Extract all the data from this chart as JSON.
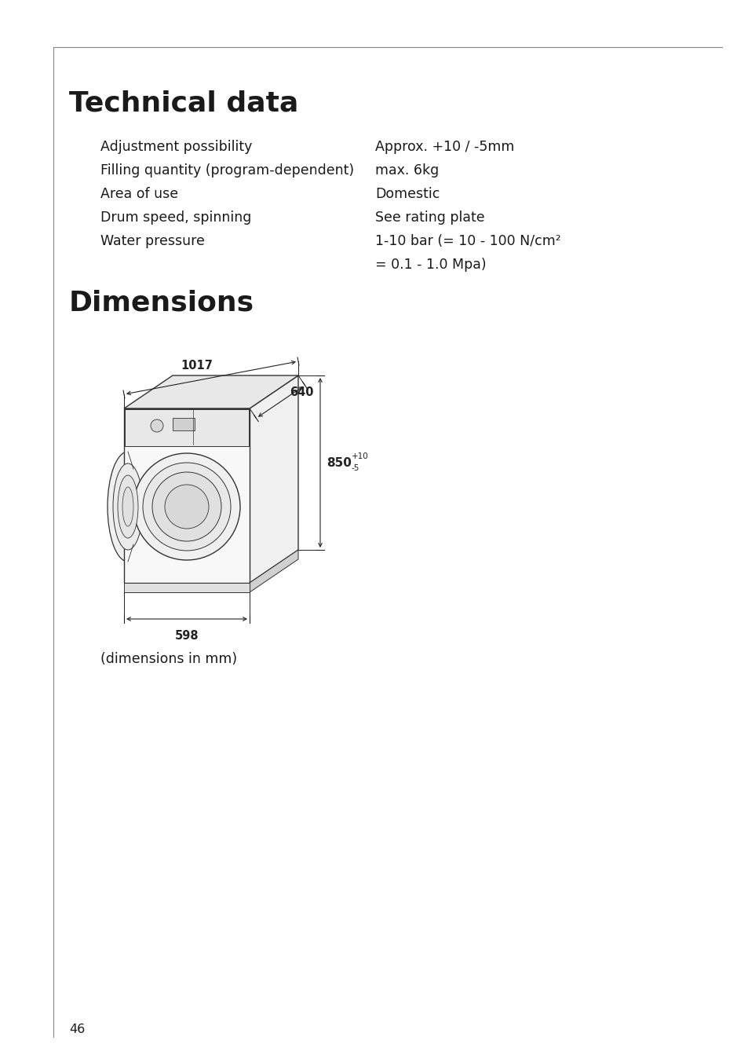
{
  "bg_color": "#ffffff",
  "title1": "Technical data",
  "title2": "Dimensions",
  "labels_left": [
    "Adjustment possibility",
    "Filling quantity (program-dependent)",
    "Area of use",
    "Drum speed, spinning",
    "Water pressure"
  ],
  "labels_right_lines": [
    "Approx. +10 / -5mm",
    "max. 6kg",
    "Domestic",
    "See rating plate",
    "1-10 bar (= 10 - 100 N/cm²",
    "= 0.1 - 1.0 Mpa)"
  ],
  "dim_1017": "1017",
  "dim_640": "640",
  "dim_850": "850",
  "dim_850_super": "+10",
  "dim_850_sub": "-5",
  "dim_598": "598",
  "dim_note": "(dimensions in mm)",
  "page_number": "46",
  "text_color": "#1a1a1a",
  "line_color": "#444444",
  "dim_color": "#222222"
}
